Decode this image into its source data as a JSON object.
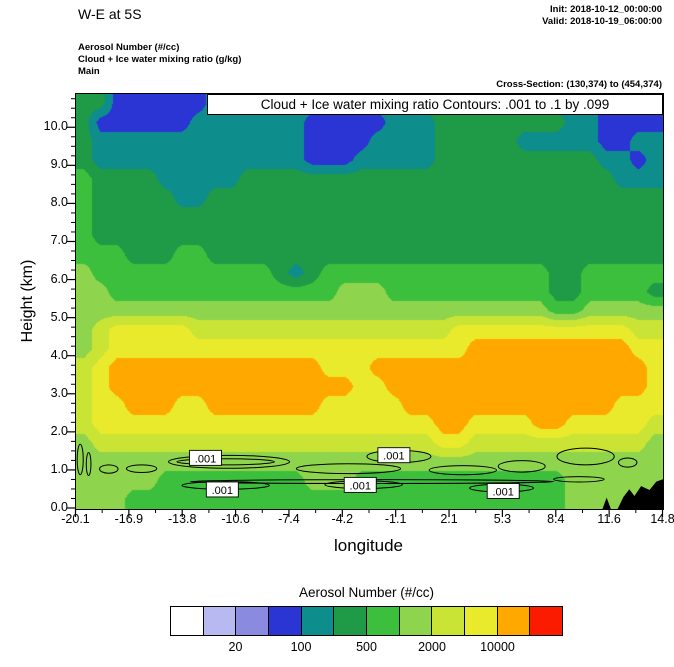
{
  "header": {
    "title": "W-E at 5S",
    "init": "Init: 2018-10-12_00:00:00",
    "valid": "Valid: 2018-10-19_06:00:00",
    "field1": "Aerosol Number  (#/cc)",
    "field2": "Cloud + Ice water mixing ratio  (g/kg)",
    "field3": "Main",
    "cross_section": "Cross-Section: (130,374) to (454,374)"
  },
  "chart_data": {
    "type": "heatmap",
    "banner": "Cloud + Ice water mixing ratio Contours: .001 to .1 by .099",
    "xlabel": "longitude",
    "ylabel": "Height (km)",
    "xlim": [
      -20.1,
      14.8
    ],
    "ylim": [
      0,
      10.9
    ],
    "x_ticks": [
      "-20.1",
      "-16.9",
      "-13.8",
      "-10.6",
      "-7.4",
      "-4.2",
      "-1.1",
      "2.1",
      "5.3",
      "8.4",
      "11.6",
      "14.8"
    ],
    "y_ticks": [
      "0.0",
      "1.0",
      "2.0",
      "3.0",
      "4.0",
      "5.0",
      "6.0",
      "7.0",
      "8.0",
      "9.0",
      "10.0"
    ],
    "palette": [
      "#ffffff",
      "#b9b9f2",
      "#8a8ae0",
      "#2a35d4",
      "#0e8d8d",
      "#1f9a47",
      "#3cbf3c",
      "#8ed44c",
      "#c9e435",
      "#e9ea2c",
      "#ffa800",
      "#fb1c00"
    ],
    "grid_note": "rows top(10.9km) to bottom(0km), cols -20.1 to 14.8 lon; hex digit = palette index of aerosol number fill",
    "grid": [
      "553333334444444444445555555554443344",
      "533333344444443333344455555555443333",
      "544444444444443333444455555444443344",
      "544444444444443334444455555555554434",
      "655554444455555555555555555555555444",
      "655555445555555555555555555555555555",
      "655555555555555555555555555555555555",
      "655555555555555555555555555555555555",
      "666555665555555555555555555555555555",
      "766666666666545666666666666665566666",
      "776666666666666677766666666665566665",
      "777777777777777777777777777776677777",
      "789999988888888888888889999999999988",
      "789999999999999999999999aaaaaaaaaa99",
      "89aaaaaaaaaaaaa999aaaaaaaaaaaaaaaaa9",
      "89aaaaaaaaaaaaaaa99aaaaaaaaaaaaaaaa9",
      "899aaa99aaaaaaa99999aaaaaaaaaaaaa999",
      "8999999999999999999999aa9999aa999998",
      "788888888888888888888899888888888887",
      "777777777777777777777777777777777777",
      "777776666666667776666666666666777777",
      "777666666666666666666666666666777777"
    ],
    "cloud_label_text": ".001",
    "cloud_labels": [
      [
        -12.4,
        1.33
      ],
      [
        -1.2,
        1.4
      ],
      [
        -11.4,
        0.5
      ],
      [
        -3.2,
        0.62
      ],
      [
        5.3,
        0.46
      ]
    ],
    "cloud_contours": [
      [
        -19.85,
        1.3,
        0.18,
        0.4
      ],
      [
        -19.35,
        1.18,
        0.14,
        0.3
      ],
      [
        -18.15,
        1.05,
        0.55,
        0.11
      ],
      [
        -16.2,
        1.06,
        0.9,
        0.1
      ],
      [
        -11.0,
        1.24,
        3.6,
        0.17
      ],
      [
        -11.2,
        1.24,
        2.9,
        0.08
      ],
      [
        -3.9,
        1.06,
        3.1,
        0.13
      ],
      [
        -0.9,
        1.38,
        1.9,
        0.16
      ],
      [
        2.9,
        1.02,
        2.0,
        0.12
      ],
      [
        6.4,
        1.12,
        1.4,
        0.15
      ],
      [
        10.2,
        1.38,
        1.7,
        0.22
      ],
      [
        12.7,
        1.22,
        0.55,
        0.12
      ],
      [
        -11.2,
        0.62,
        2.6,
        0.1
      ],
      [
        -3.0,
        0.64,
        2.3,
        0.1
      ],
      [
        5.2,
        0.55,
        1.9,
        0.1
      ],
      [
        -2.5,
        0.72,
        10.8,
        0.05
      ],
      [
        9.8,
        0.78,
        1.5,
        0.07
      ]
    ],
    "terrain": [
      [
        [
          11.2,
          0
        ],
        [
          11.45,
          0.3
        ],
        [
          11.7,
          0
        ]
      ],
      [
        [
          12.1,
          0
        ],
        [
          12.45,
          0.32
        ],
        [
          12.8,
          0.52
        ],
        [
          13.1,
          0.34
        ],
        [
          13.5,
          0.6
        ],
        [
          14.0,
          0.5
        ],
        [
          14.4,
          0.72
        ],
        [
          14.8,
          0.78
        ],
        [
          14.8,
          0
        ]
      ]
    ],
    "colorbar": {
      "title": "Aerosol Number  (#/cc)",
      "labels": [
        {
          "text": "20",
          "boundary": 2
        },
        {
          "text": "100",
          "boundary": 4
        },
        {
          "text": "500",
          "boundary": 6
        },
        {
          "text": "2000",
          "boundary": 8
        },
        {
          "text": "10000",
          "boundary": 10
        }
      ]
    }
  }
}
